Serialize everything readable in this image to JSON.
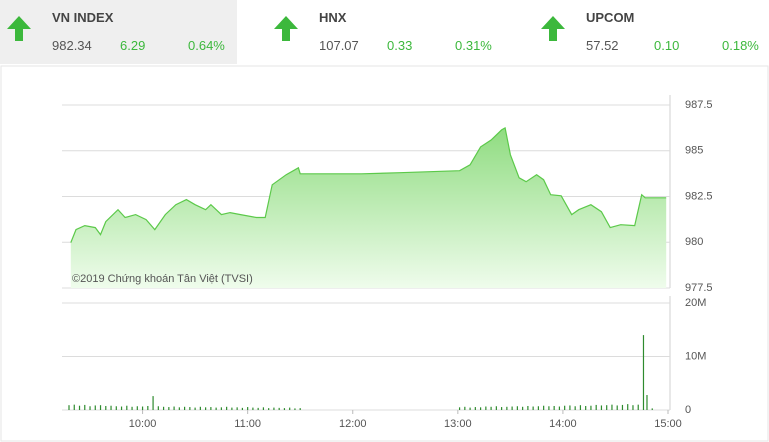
{
  "header": {
    "indices": [
      {
        "name": "VN INDEX",
        "value": "982.34",
        "change": "6.29",
        "percent": "0.64%"
      },
      {
        "name": "HNX",
        "value": "107.07",
        "change": "0.33",
        "percent": "0.31%"
      },
      {
        "name": "UPCOM",
        "value": "57.52",
        "change": "0.10",
        "percent": "0.18%"
      }
    ]
  },
  "chart_data": [
    {
      "type": "area",
      "annotation": "©2019 Chứng khoán Tân Việt (TVSI)",
      "color": "#5cc94a",
      "x": [
        559,
        562,
        567,
        573,
        576,
        579,
        586,
        590,
        596,
        602,
        607,
        613,
        619,
        625,
        630,
        636,
        639,
        645,
        650,
        656,
        665,
        670,
        674,
        682,
        689,
        690,
        725,
        747,
        781,
        787,
        793,
        799,
        805,
        807,
        810,
        815,
        819,
        825,
        829,
        833,
        839,
        845,
        849,
        856,
        862,
        867,
        873,
        881,
        885,
        887,
        899
      ],
      "values": [
        979.98,
        980.69,
        980.91,
        980.8,
        980.42,
        981.13,
        981.78,
        981.35,
        981.51,
        981.24,
        980.69,
        981.51,
        982.05,
        982.33,
        982.05,
        981.78,
        982.05,
        981.51,
        981.62,
        981.51,
        981.35,
        981.35,
        983.14,
        983.69,
        984.07,
        983.74,
        983.74,
        983.8,
        983.91,
        984.23,
        985.21,
        985.59,
        986.14,
        986.25,
        984.78,
        983.52,
        983.31,
        983.69,
        983.42,
        982.6,
        982.54,
        981.51,
        981.78,
        982.05,
        981.67,
        980.8,
        980.96,
        980.91,
        982.6,
        982.43,
        982.43
      ],
      "xlim": [
        554,
        900
      ],
      "ylim": [
        977.5,
        987.5
      ],
      "yticks": [
        977.5,
        980,
        982.5,
        985,
        987.5
      ],
      "grid": true
    },
    {
      "type": "bar",
      "color": "#2e8b2e",
      "x": [
        558,
        561,
        564,
        567,
        570,
        573,
        576,
        579,
        582,
        585,
        588,
        591,
        594,
        597,
        600,
        603,
        606,
        609,
        612,
        615,
        618,
        621,
        624,
        627,
        630,
        633,
        636,
        639,
        642,
        645,
        648,
        651,
        654,
        657,
        660,
        663,
        666,
        669,
        672,
        675,
        678,
        681,
        684,
        687,
        690,
        781,
        784,
        787,
        790,
        793,
        796,
        799,
        802,
        805,
        808,
        811,
        814,
        817,
        820,
        823,
        826,
        829,
        832,
        835,
        838,
        841,
        844,
        847,
        850,
        853,
        856,
        859,
        862,
        865,
        868,
        871,
        874,
        877,
        880,
        883,
        886,
        888,
        891
      ],
      "values": [
        900000,
        1000000,
        800000,
        950000,
        700000,
        850000,
        900000,
        750000,
        800000,
        700000,
        650000,
        800000,
        600000,
        700000,
        650000,
        750000,
        2600000,
        700000,
        600000,
        550000,
        650000,
        500000,
        600000,
        550000,
        450000,
        600000,
        500000,
        550000,
        450000,
        500000,
        600000,
        450000,
        500000,
        400000,
        550000,
        450000,
        400000,
        500000,
        350000,
        450000,
        400000,
        350000,
        450000,
        300000,
        350000,
        500000,
        600000,
        450000,
        550000,
        500000,
        650000,
        600000,
        700000,
        550000,
        600000,
        650000,
        700000,
        600000,
        750000,
        650000,
        700000,
        800000,
        700000,
        750000,
        650000,
        800000,
        850000,
        700000,
        900000,
        750000,
        800000,
        950000,
        850000,
        900000,
        1000000,
        850000,
        950000,
        1100000,
        900000,
        1000000,
        14000000,
        2800000,
        300000
      ],
      "xlim": [
        554,
        900
      ],
      "ylim": [
        0,
        20000000
      ],
      "yticks": [
        0,
        {
          "value": 10000000,
          "label": "10M"
        },
        {
          "value": 20000000,
          "label": "20M"
        }
      ],
      "xticks": [
        {
          "value": 600,
          "label": "10:00"
        },
        {
          "value": 660,
          "label": "11:00"
        },
        {
          "value": 720,
          "label": "12:00"
        },
        {
          "value": 780,
          "label": "13:00"
        },
        {
          "value": 840,
          "label": "14:00"
        },
        {
          "value": 900,
          "label": "15:00"
        }
      ],
      "grid": true
    }
  ]
}
